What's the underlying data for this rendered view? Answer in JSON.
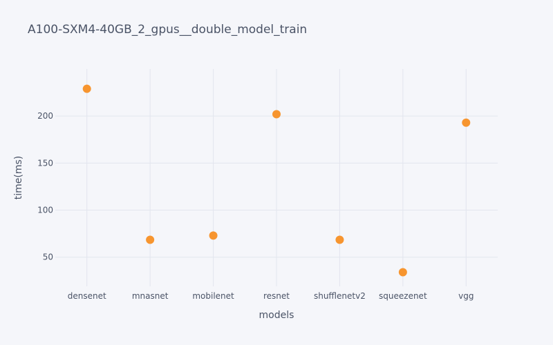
{
  "chart_data": {
    "type": "scatter",
    "title": "A100-SXM4-40GB_2_gpus__double_model_train",
    "xlabel": "models",
    "ylabel": "time(ms)",
    "categories": [
      "densenet",
      "mnasnet",
      "mobilenet",
      "resnet",
      "shufflenetv2",
      "squeezenet",
      "vgg"
    ],
    "series": [
      {
        "values": [
          229,
          68.5,
          73,
          202,
          68.5,
          34,
          193
        ],
        "color": "#f7952f"
      }
    ],
    "ylim": [
      19,
      250
    ],
    "yticks": [
      50,
      100,
      150,
      200
    ],
    "grid": true,
    "legend": false
  }
}
